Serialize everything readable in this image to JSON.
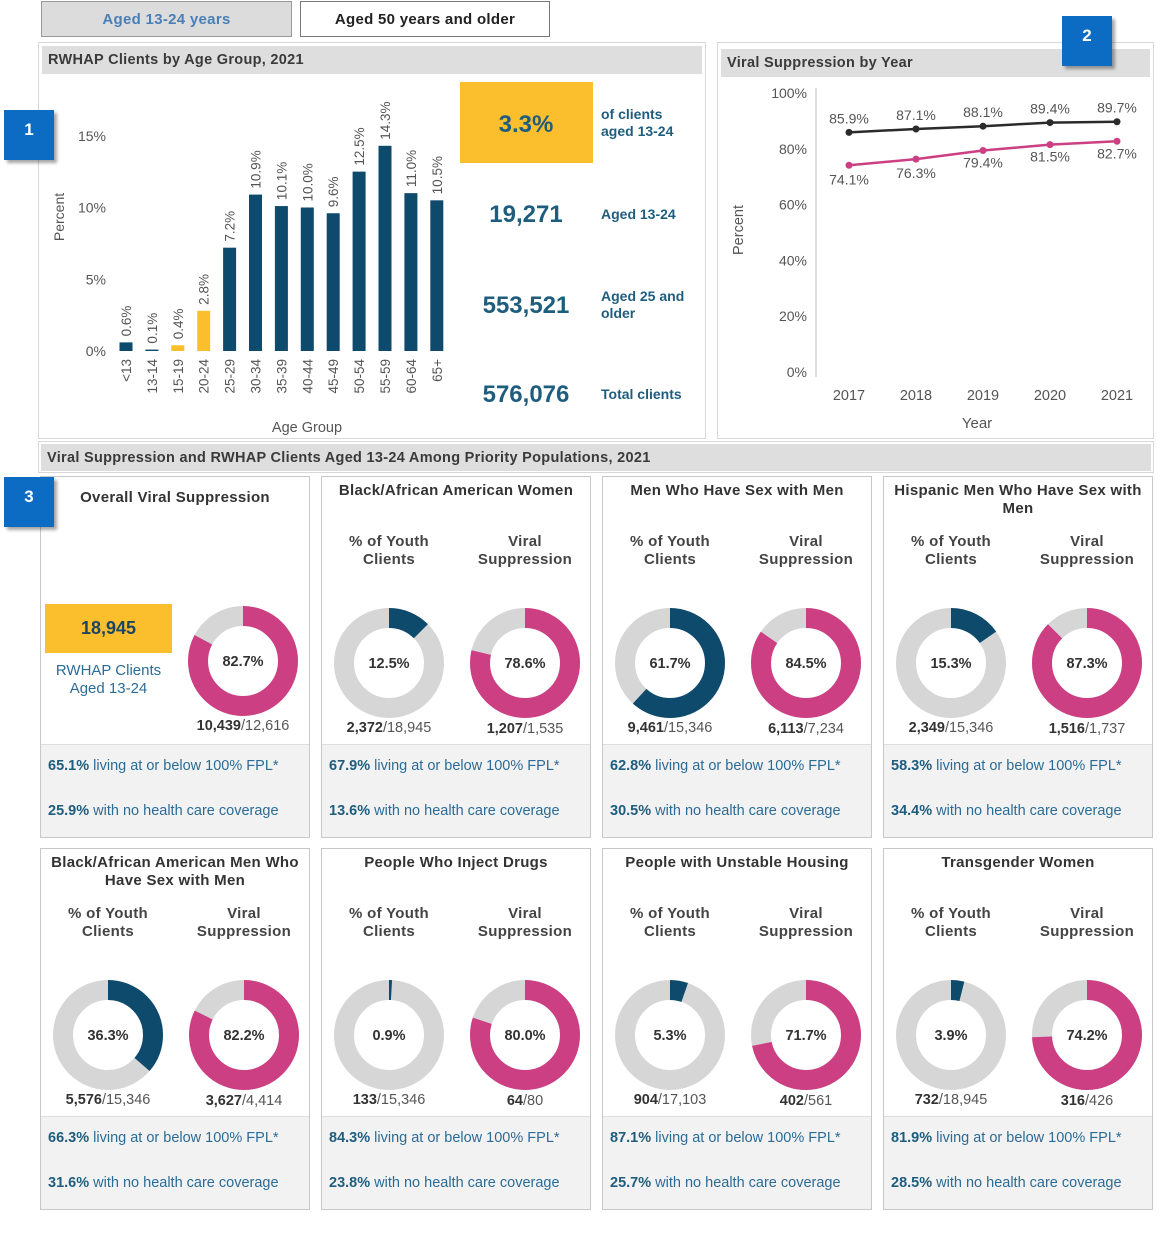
{
  "tabs": [
    {
      "label": "Aged 13-24 years",
      "active": true
    },
    {
      "label": "Aged 50 years and older",
      "active": false
    }
  ],
  "markers": [
    "1",
    "2",
    "3"
  ],
  "age_panel": {
    "title": "RWHAP Clients by Age Group, 2021",
    "kpis": [
      {
        "value": "3.3%",
        "label": "of clients aged 13-24",
        "highlight": true
      },
      {
        "value": "19,271",
        "label": "Aged 13-24",
        "highlight": false
      },
      {
        "value": "553,521",
        "label": "Aged 25 and older",
        "highlight": false
      },
      {
        "value": "576,076",
        "label": "Total clients",
        "highlight": false
      }
    ]
  },
  "viral_panel": {
    "title": "Viral Suppression by Year"
  },
  "priority_section": {
    "title": "Viral Suppression and RWHAP Clients Aged 13-24 Among Priority Populations, 2021",
    "sub_youth": "% of Youth Clients",
    "sub_viral": "Viral Suppression",
    "overall": {
      "title": "Overall Viral Suppression",
      "count": "18,945",
      "count_label": "RWHAP Clients Aged 13-24",
      "viral_pct": 82.7,
      "viral_label": "82.7%",
      "viral_num": "10,439",
      "viral_den": "12,616",
      "fpl_pct": "65.1%",
      "fpl_text": "living at or below 100% FPL*",
      "nocov_pct": "25.9%",
      "nocov_text": "with no health care coverage"
    },
    "cards": [
      {
        "title": "Black/African American Women",
        "youth_pct": 12.5,
        "youth_label": "12.5%",
        "youth_num": "2,372",
        "youth_den": "18,945",
        "viral_pct": 78.6,
        "viral_label": "78.6%",
        "viral_num": "1,207",
        "viral_den": "1,535",
        "fpl_pct": "67.9%",
        "fpl_text": "living at or below 100% FPL*",
        "nocov_pct": "13.6%",
        "nocov_text": "with no health care coverage"
      },
      {
        "title": "Men Who Have Sex with Men",
        "youth_pct": 61.7,
        "youth_label": "61.7%",
        "youth_num": "9,461",
        "youth_den": "15,346",
        "viral_pct": 84.5,
        "viral_label": "84.5%",
        "viral_num": "6,113",
        "viral_den": "7,234",
        "fpl_pct": "62.8%",
        "fpl_text": "living at or below 100% FPL*",
        "nocov_pct": "30.5%",
        "nocov_text": "with no health care coverage"
      },
      {
        "title": "Hispanic Men Who Have Sex with Men",
        "youth_pct": 15.3,
        "youth_label": "15.3%",
        "youth_num": "2,349",
        "youth_den": "15,346",
        "viral_pct": 87.3,
        "viral_label": "87.3%",
        "viral_num": "1,516",
        "viral_den": "1,737",
        "fpl_pct": "58.3%",
        "fpl_text": "living at or below 100% FPL*",
        "nocov_pct": "34.4%",
        "nocov_text": "with no health care coverage"
      },
      {
        "title": "Black/African American Men Who Have Sex with Men",
        "youth_pct": 36.3,
        "youth_label": "36.3%",
        "youth_num": "5,576",
        "youth_den": "15,346",
        "viral_pct": 82.2,
        "viral_label": "82.2%",
        "viral_num": "3,627",
        "viral_den": "4,414",
        "fpl_pct": "66.3%",
        "fpl_text": "living at or below 100% FPL*",
        "nocov_pct": "31.6%",
        "nocov_text": "with no health care coverage"
      },
      {
        "title": "People Who Inject Drugs",
        "youth_pct": 0.9,
        "youth_label": "0.9%",
        "youth_num": "133",
        "youth_den": "15,346",
        "viral_pct": 80.0,
        "viral_label": "80.0%",
        "viral_num": "64",
        "viral_den": "80",
        "fpl_pct": "84.3%",
        "fpl_text": "living at or below 100% FPL*",
        "nocov_pct": "23.8%",
        "nocov_text": "with no health care coverage"
      },
      {
        "title": "People with Unstable Housing",
        "youth_pct": 5.3,
        "youth_label": "5.3%",
        "youth_num": "904",
        "youth_den": "17,103",
        "viral_pct": 71.7,
        "viral_label": "71.7%",
        "viral_num": "402",
        "viral_den": "561",
        "fpl_pct": "87.1%",
        "fpl_text": "living at or below 100% FPL*",
        "nocov_pct": "25.7%",
        "nocov_text": "with no health care coverage"
      },
      {
        "title": "Transgender Women",
        "youth_pct": 3.9,
        "youth_label": "3.9%",
        "youth_num": "732",
        "youth_den": "18,945",
        "viral_pct": 74.2,
        "viral_label": "74.2%",
        "viral_num": "316",
        "viral_den": "426",
        "fpl_pct": "81.9%",
        "fpl_text": "living at or below 100% FPL*",
        "nocov_pct": "28.5%",
        "nocov_text": "with no health care coverage"
      }
    ]
  },
  "colors": {
    "navy": "#0d4a6b",
    "gold": "#fbbf2e",
    "pink": "#cc3f83",
    "gray_ring": "#d6d6d6",
    "line_black": "#2b2b2b"
  },
  "chart_data": [
    {
      "type": "bar",
      "title": "RWHAP Clients by Age Group, 2021",
      "xlabel": "Age Group",
      "ylabel": "Percent",
      "ylim": [
        0,
        18
      ],
      "yticks": [
        "0%",
        "5%",
        "10%",
        "15%"
      ],
      "categories": [
        "<13",
        "13-14",
        "15-19",
        "20-24",
        "25-29",
        "30-34",
        "35-39",
        "40-44",
        "45-49",
        "50-54",
        "55-59",
        "60-64",
        "65+"
      ],
      "values": [
        0.6,
        0.1,
        0.4,
        2.8,
        7.2,
        10.9,
        10.1,
        10.0,
        9.6,
        12.5,
        14.3,
        11.0,
        10.5
      ],
      "labels": [
        "0.6%",
        "0.1%",
        "0.4%",
        "2.8%",
        "7.2%",
        "10.9%",
        "10.1%",
        "10.0%",
        "9.6%",
        "12.5%",
        "14.3%",
        "11.0%",
        "10.5%"
      ],
      "highlight": [
        "15-19",
        "20-24"
      ],
      "grid": false
    },
    {
      "type": "line",
      "title": "Viral Suppression by Year",
      "xlabel": "Year",
      "ylabel": "Percent",
      "ylim": [
        0,
        100
      ],
      "yticks": [
        "0%",
        "20%",
        "40%",
        "60%",
        "80%",
        "100%"
      ],
      "x": [
        "2017",
        "2018",
        "2019",
        "2020",
        "2021"
      ],
      "series": [
        {
          "values": [
            85.9,
            87.1,
            88.1,
            89.4,
            89.7
          ],
          "labels": [
            "85.9%",
            "87.1%",
            "88.1%",
            "89.4%",
            "89.7%"
          ],
          "color": "#2b2b2b"
        },
        {
          "values": [
            74.1,
            76.3,
            79.4,
            81.5,
            82.7
          ],
          "labels": [
            "74.1%",
            "76.3%",
            "79.4%",
            "81.5%",
            "82.7%"
          ],
          "color": "#cc3f83"
        }
      ],
      "grid": false
    }
  ]
}
